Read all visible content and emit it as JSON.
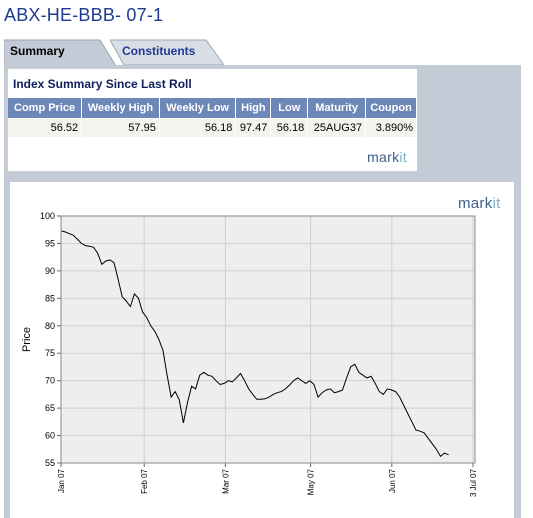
{
  "page": {
    "title": "ABX-HE-BBB- 07-1"
  },
  "tabs": [
    {
      "label": "Summary",
      "active": true
    },
    {
      "label": "Constituents",
      "active": false
    }
  ],
  "summary": {
    "heading": "Index Summary Since Last Roll",
    "columns": [
      "Comp Price",
      "Weekly High",
      "Weekly Low",
      "High",
      "Low",
      "Maturity",
      "Coupon"
    ],
    "row": [
      "56.52",
      "57.95",
      "56.18",
      "97.47",
      "56.18",
      "25AUG37",
      "3.890%"
    ],
    "logo": {
      "mark": "mark",
      "it": "it"
    }
  },
  "colors": {
    "title": "#1f3a93",
    "header_bg": "#6d87b8",
    "panel_bg": "#c2cbd6",
    "plot_bg": "#eeeeee"
  },
  "chart_logo": {
    "mark": "mark",
    "it": "it"
  },
  "chart_data": {
    "type": "line",
    "ylabel": "Price",
    "xlabel": "",
    "ylim": [
      55,
      100
    ],
    "yticks": [
      55,
      60,
      65,
      70,
      75,
      80,
      85,
      90,
      95,
      100
    ],
    "x_ticks": [
      "Jan 07",
      "Feb 07",
      "Mar 07",
      "May 07",
      "Jun 07",
      "3 Jul 07"
    ],
    "grid": true,
    "series": [
      {
        "values": [
          [
            0,
            97.3
          ],
          [
            1,
            97.1
          ],
          [
            2,
            96.8
          ],
          [
            3,
            96.5
          ],
          [
            4,
            95.8
          ],
          [
            5,
            95.0
          ],
          [
            6,
            94.6
          ],
          [
            7,
            94.5
          ],
          [
            8,
            94.3
          ],
          [
            9,
            93.2
          ],
          [
            10,
            91.2
          ],
          [
            11,
            91.8
          ],
          [
            12,
            92.0
          ],
          [
            13,
            91.5
          ],
          [
            14,
            88.5
          ],
          [
            15,
            85.3
          ],
          [
            16,
            84.5
          ],
          [
            17,
            83.5
          ],
          [
            18,
            85.8
          ],
          [
            19,
            85.0
          ],
          [
            20,
            82.5
          ],
          [
            21,
            81.5
          ],
          [
            22,
            80.0
          ],
          [
            23,
            79.0
          ],
          [
            24,
            77.5
          ],
          [
            25,
            75.5
          ],
          [
            26,
            71.0
          ],
          [
            27,
            67.0
          ],
          [
            28,
            68.0
          ],
          [
            29,
            66.5
          ],
          [
            30,
            62.3
          ],
          [
            31,
            66.0
          ],
          [
            32,
            69.0
          ],
          [
            33,
            68.5
          ],
          [
            34,
            71.0
          ],
          [
            35,
            71.5
          ],
          [
            36,
            71.0
          ],
          [
            37,
            70.8
          ],
          [
            38,
            70.0
          ],
          [
            39,
            69.3
          ],
          [
            40,
            69.5
          ],
          [
            41,
            70.0
          ],
          [
            42,
            69.8
          ],
          [
            43,
            70.5
          ],
          [
            44,
            71.3
          ],
          [
            45,
            70.0
          ],
          [
            46,
            68.5
          ],
          [
            47,
            67.5
          ],
          [
            48,
            66.6
          ],
          [
            49,
            66.6
          ],
          [
            50,
            66.7
          ],
          [
            51,
            67.0
          ],
          [
            52,
            67.5
          ],
          [
            53,
            67.8
          ],
          [
            54,
            68.0
          ],
          [
            55,
            68.5
          ],
          [
            56,
            69.2
          ],
          [
            57,
            70.0
          ],
          [
            58,
            70.5
          ],
          [
            59,
            70.0
          ],
          [
            60,
            69.5
          ],
          [
            61,
            70.0
          ],
          [
            62,
            69.3
          ],
          [
            63,
            67.0
          ],
          [
            64,
            67.8
          ],
          [
            65,
            68.3
          ],
          [
            66,
            68.5
          ],
          [
            67,
            67.8
          ],
          [
            68,
            68.0
          ],
          [
            69,
            68.3
          ],
          [
            70,
            70.5
          ],
          [
            71,
            72.5
          ],
          [
            72,
            73.0
          ],
          [
            73,
            71.5
          ],
          [
            74,
            71.0
          ],
          [
            75,
            70.5
          ],
          [
            76,
            70.8
          ],
          [
            77,
            69.5
          ],
          [
            78,
            68.0
          ],
          [
            79,
            67.5
          ],
          [
            80,
            68.5
          ],
          [
            81,
            68.3
          ],
          [
            82,
            68.0
          ],
          [
            83,
            67.0
          ],
          [
            84,
            65.5
          ],
          [
            85,
            64.0
          ],
          [
            86,
            62.5
          ],
          [
            87,
            61.0
          ],
          [
            88,
            60.8
          ],
          [
            89,
            60.5
          ],
          [
            90,
            59.5
          ],
          [
            91,
            58.5
          ],
          [
            92,
            57.5
          ],
          [
            93,
            56.2
          ],
          [
            94,
            56.8
          ],
          [
            95,
            56.5
          ]
        ]
      }
    ]
  }
}
